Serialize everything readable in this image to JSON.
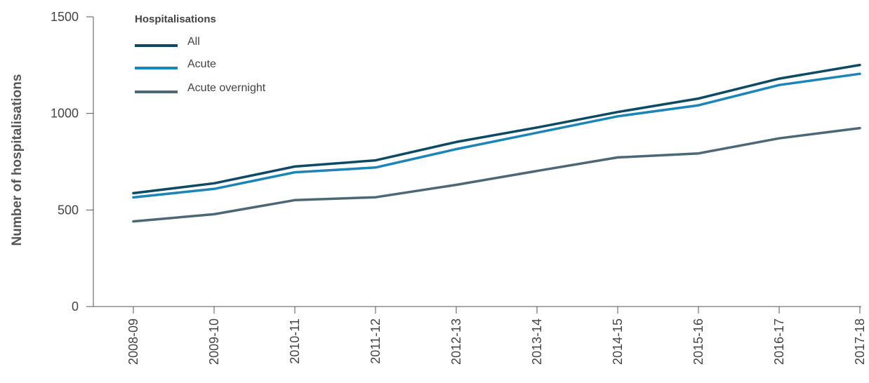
{
  "chart_data": {
    "type": "line",
    "title": "",
    "xlabel": "",
    "ylabel": "Number of hospitalisations",
    "ylim": [
      0,
      1500
    ],
    "yticks": [
      "0",
      "500",
      "1000",
      "1500"
    ],
    "categories": [
      "2008-09",
      "2009-10",
      "2010-11",
      "2011-12",
      "2012-13",
      "2013-14",
      "2014-15",
      "2015-16",
      "2016-17",
      "2017-18"
    ],
    "legend": {
      "title": "Hospitalisations",
      "position": "top-left"
    },
    "grid": false,
    "series": [
      {
        "name": "All",
        "color": "#0d4a63",
        "values": [
          587,
          638,
          725,
          757,
          852,
          927,
          1007,
          1077,
          1180,
          1251
        ]
      },
      {
        "name": "Acute",
        "color": "#1a85b7",
        "values": [
          565,
          609,
          695,
          720,
          815,
          900,
          985,
          1042,
          1147,
          1205
        ]
      },
      {
        "name": "Acute overnight",
        "color": "#4c6775",
        "values": [
          441,
          478,
          551,
          566,
          630,
          702,
          772,
          793,
          871,
          924
        ]
      }
    ]
  }
}
